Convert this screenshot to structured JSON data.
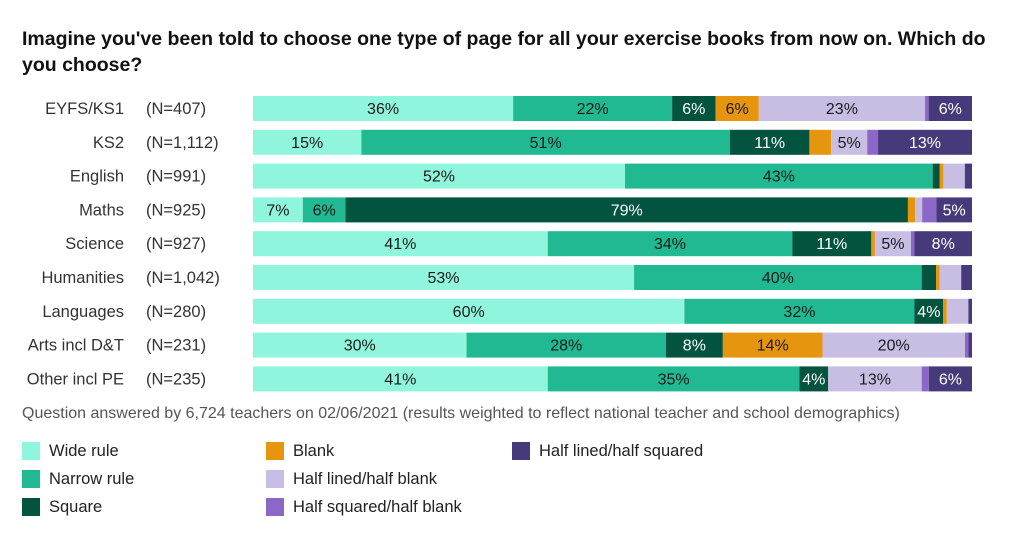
{
  "chart_data": {
    "type": "bar",
    "orientation": "horizontal",
    "stacked": true,
    "percent": true,
    "title": "Imagine you've been told to choose one type of page for all your exercise books from now on. Which do you choose?",
    "footnote": "Question answered by 6,724 teachers on 02/06/2021 (results weighted to reflect national teacher and school demographics)",
    "categories": [
      "EYFS/KS1",
      "KS2",
      "English",
      "Maths",
      "Science",
      "Humanities",
      "Languages",
      "Arts incl D&T",
      "Other incl PE"
    ],
    "counts": [
      "(N=407)",
      "(N=1,112)",
      "(N=991)",
      "(N=925)",
      "(N=927)",
      "(N=1,042)",
      "(N=280)",
      "(N=231)",
      "(N=235)"
    ],
    "xlim": [
      0,
      100
    ],
    "grid": false,
    "legend_position": "bottom",
    "series": [
      {
        "name": "Wide rule",
        "color": "#8ff5dc",
        "label_color": "#1a1a1a",
        "values": [
          36,
          15,
          52,
          7,
          41,
          53,
          60,
          30,
          41
        ]
      },
      {
        "name": "Narrow rule",
        "color": "#21b991",
        "label_color": "#1a1a1a",
        "values": [
          22,
          51,
          43,
          6,
          34,
          40,
          32,
          28,
          35
        ]
      },
      {
        "name": "Square",
        "color": "#03543f",
        "label_color": "#ffffff",
        "values": [
          6,
          11,
          1,
          79,
          11,
          2,
          4,
          8,
          4
        ]
      },
      {
        "name": "Blank",
        "color": "#e5960e",
        "label_color": "#1a1a1a",
        "values": [
          6,
          3,
          0.5,
          1,
          0.5,
          0.5,
          0.5,
          14,
          0
        ]
      },
      {
        "name": "Half lined/half blank",
        "color": "#c8bee4",
        "label_color": "#1a1a1a",
        "values": [
          23,
          5,
          3,
          1,
          5,
          3,
          3,
          20,
          13
        ]
      },
      {
        "name": "Half squared/half blank",
        "color": "#8b68c8",
        "label_color": "#1a1a1a",
        "values": [
          0.5,
          1.5,
          0,
          2,
          0.5,
          0,
          0,
          0.5,
          1
        ]
      },
      {
        "name": "Half lined/half squared",
        "color": "#463a7a",
        "label_color": "#ffffff",
        "values": [
          6,
          13,
          1,
          5,
          8,
          1.5,
          0.5,
          0.5,
          6
        ]
      }
    ],
    "data_labels": [
      [
        "36%",
        "22%",
        "6%",
        "6%",
        "23%",
        "",
        "6%"
      ],
      [
        "15%",
        "51%",
        "11%",
        "",
        "5%",
        "",
        "13%"
      ],
      [
        "52%",
        "43%",
        "",
        "",
        "",
        "",
        ""
      ],
      [
        "7%",
        "6%",
        "79%",
        "",
        "",
        "",
        "5%"
      ],
      [
        "41%",
        "34%",
        "11%",
        "",
        "5%",
        "",
        "8%"
      ],
      [
        "53%",
        "40%",
        "",
        "",
        "",
        "",
        ""
      ],
      [
        "60%",
        "32%",
        "4%",
        "",
        "",
        "",
        ""
      ],
      [
        "30%",
        "28%",
        "8%",
        "14%",
        "20%",
        "",
        ""
      ],
      [
        "41%",
        "35%",
        "4%",
        "",
        "13%",
        "",
        "6%"
      ]
    ],
    "legend_layout": [
      [
        0,
        1,
        2
      ],
      [
        3,
        4,
        5
      ],
      [
        6
      ]
    ]
  }
}
